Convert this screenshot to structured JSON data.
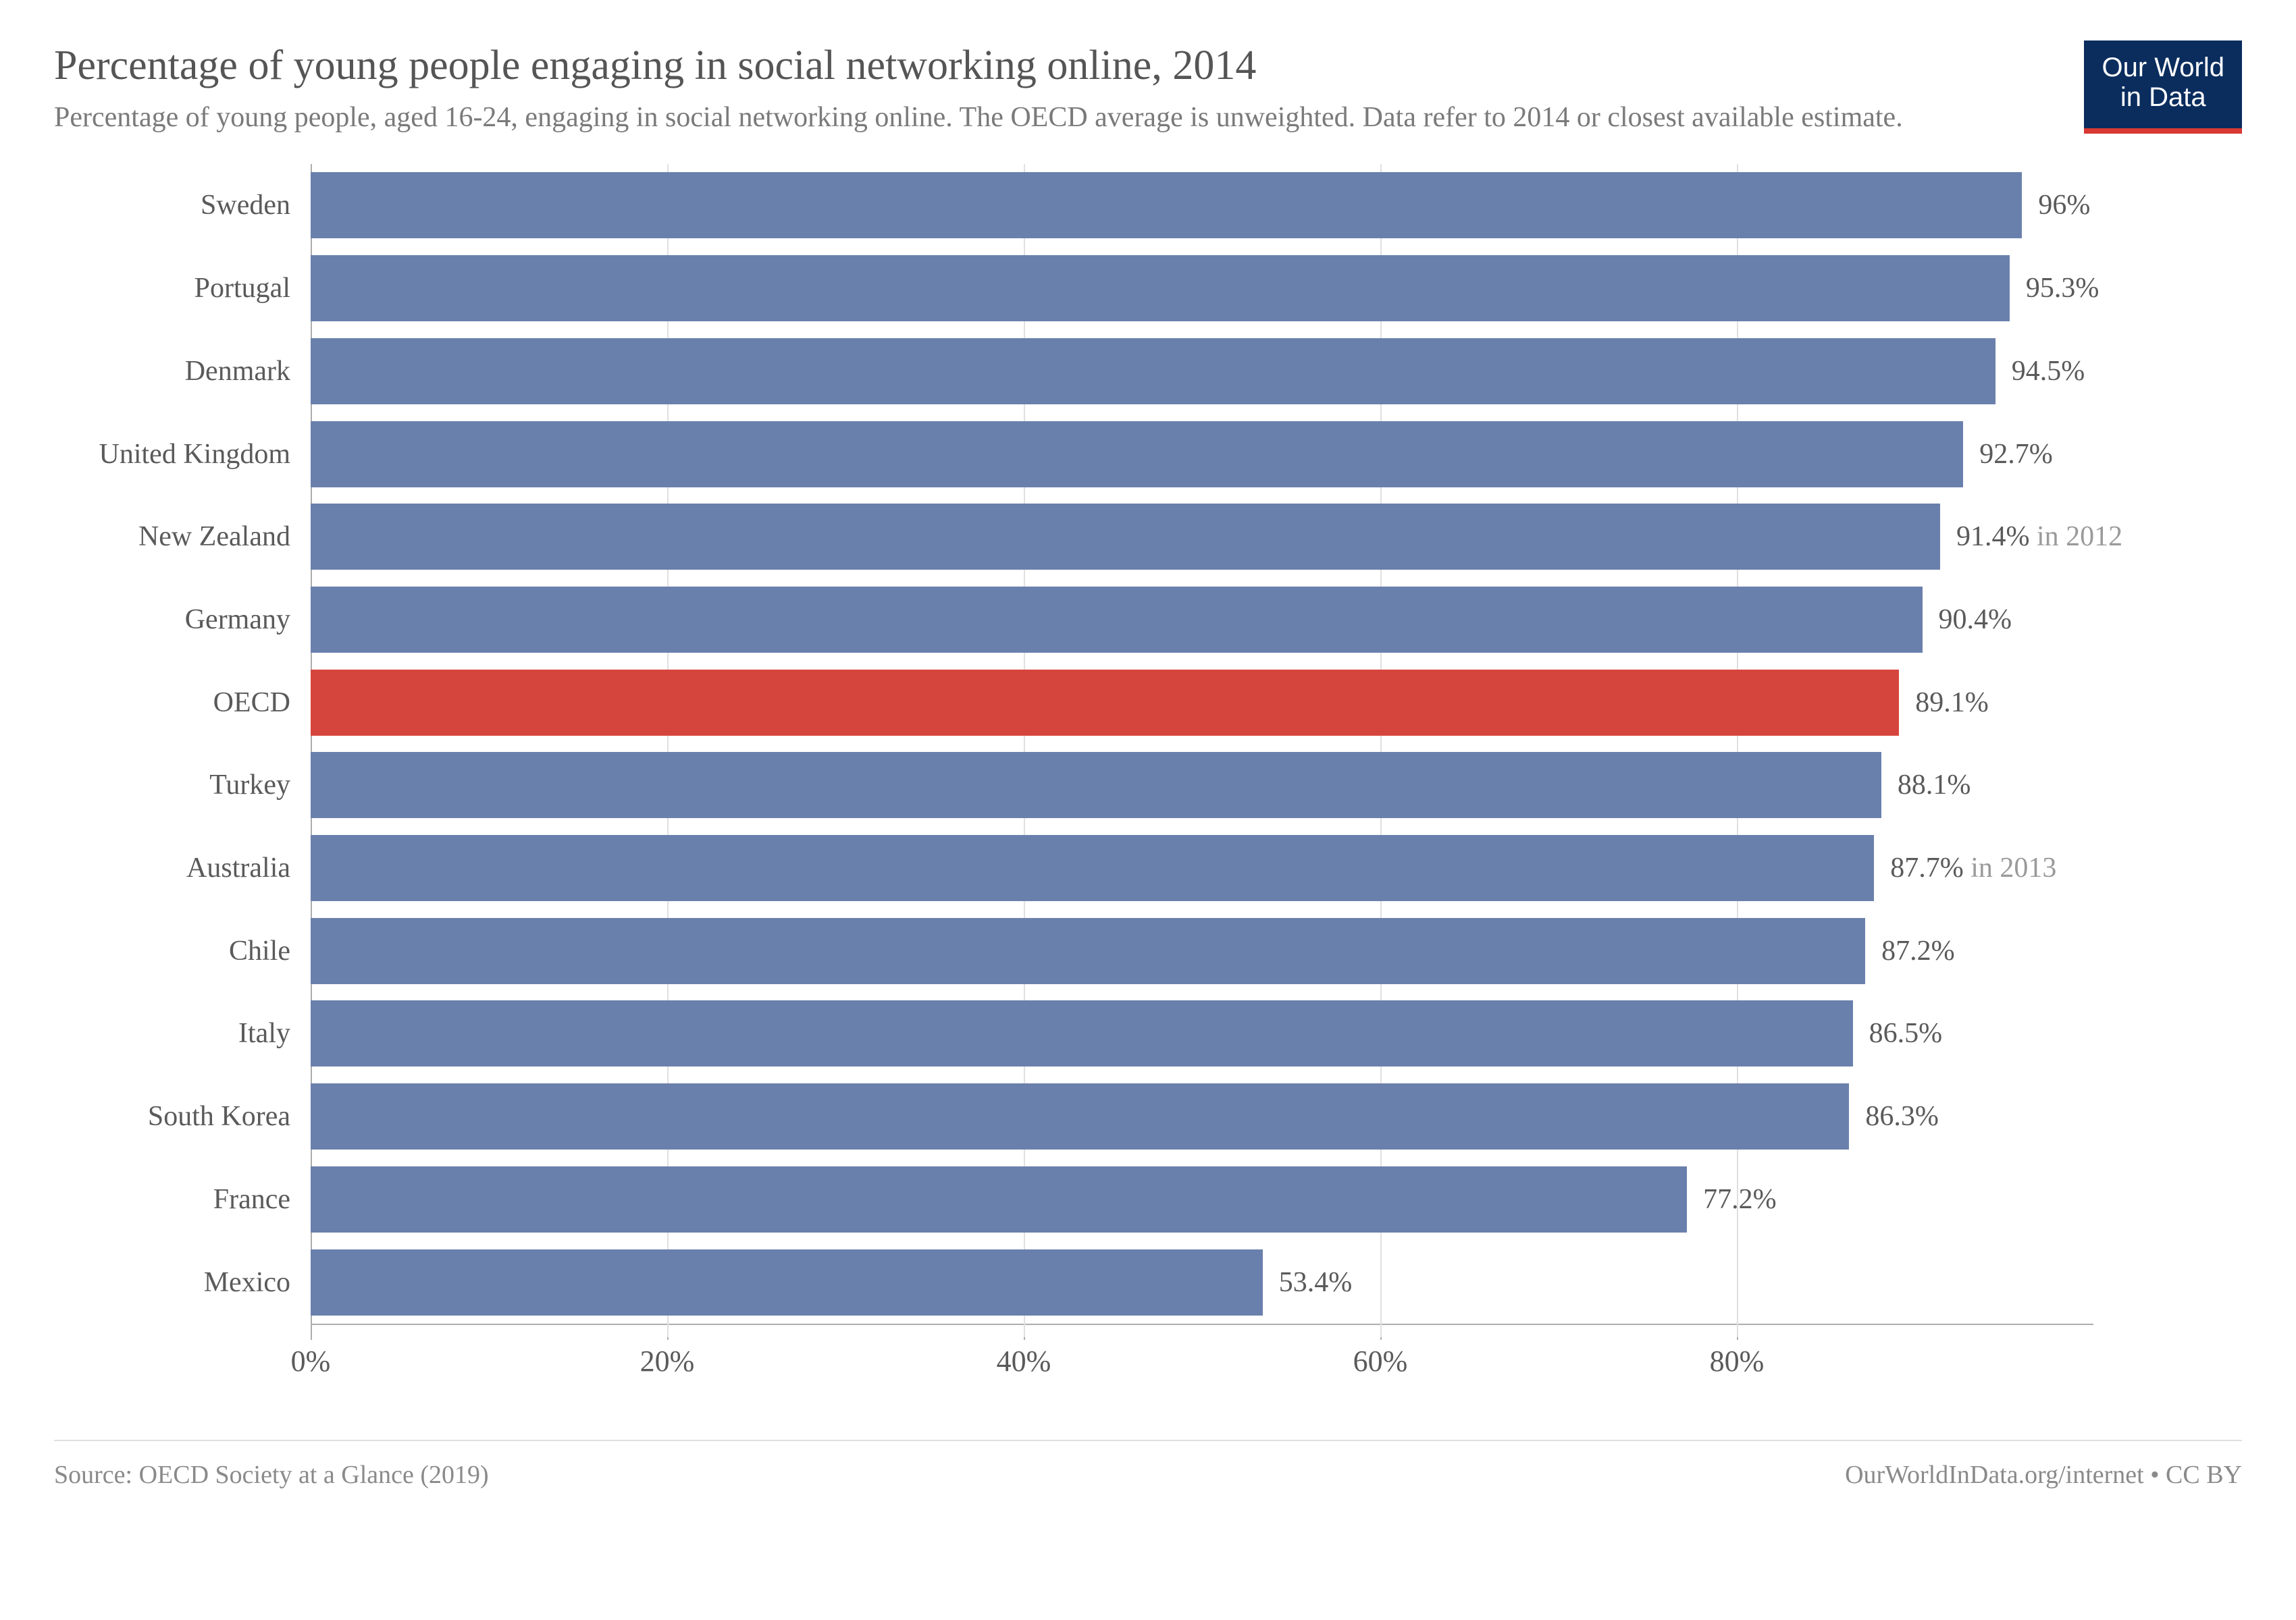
{
  "header": {
    "title": "Percentage of young people engaging in social networking online, 2014",
    "subtitle": "Percentage of young people, aged 16-24, engaging in social networking online. The OECD average is unweighted. Data refer to 2014 or closest available estimate.",
    "logo_line1": "Our World",
    "logo_line2": "in Data",
    "logo_bg": "#0a2d5e",
    "logo_accent": "#d83933"
  },
  "chart": {
    "type": "bar-horizontal",
    "x_min": 0,
    "x_max": 100,
    "x_ticks": [
      0,
      20,
      40,
      60,
      80
    ],
    "x_tick_labels": [
      "0%",
      "20%",
      "40%",
      "60%",
      "80%"
    ],
    "bar_color": "#6a80ac",
    "highlight_color": "#d6453d",
    "background_color": "#ffffff",
    "grid_color": "#e0e0e0",
    "axis_color": "#adadad",
    "label_fontsize": 42,
    "axis_fontsize": 44,
    "rows": [
      {
        "label": "Sweden",
        "value": 96.0,
        "display": "96%",
        "note": "",
        "highlight": false
      },
      {
        "label": "Portugal",
        "value": 95.3,
        "display": "95.3%",
        "note": "",
        "highlight": false
      },
      {
        "label": "Denmark",
        "value": 94.5,
        "display": "94.5%",
        "note": "",
        "highlight": false
      },
      {
        "label": "United Kingdom",
        "value": 92.7,
        "display": "92.7%",
        "note": "",
        "highlight": false
      },
      {
        "label": "New Zealand",
        "value": 91.4,
        "display": "91.4%",
        "note": " in 2012",
        "highlight": false
      },
      {
        "label": "Germany",
        "value": 90.4,
        "display": "90.4%",
        "note": "",
        "highlight": false
      },
      {
        "label": "OECD",
        "value": 89.1,
        "display": "89.1%",
        "note": "",
        "highlight": true
      },
      {
        "label": "Turkey",
        "value": 88.1,
        "display": "88.1%",
        "note": "",
        "highlight": false
      },
      {
        "label": "Australia",
        "value": 87.7,
        "display": "87.7%",
        "note": " in 2013",
        "highlight": false
      },
      {
        "label": "Chile",
        "value": 87.2,
        "display": "87.2%",
        "note": "",
        "highlight": false
      },
      {
        "label": "Italy",
        "value": 86.5,
        "display": "86.5%",
        "note": "",
        "highlight": false
      },
      {
        "label": "South Korea",
        "value": 86.3,
        "display": "86.3%",
        "note": "",
        "highlight": false
      },
      {
        "label": "France",
        "value": 77.2,
        "display": "77.2%",
        "note": "",
        "highlight": false
      },
      {
        "label": "Mexico",
        "value": 53.4,
        "display": "53.4%",
        "note": "",
        "highlight": false
      }
    ]
  },
  "footer": {
    "source": "Source: OECD Society at a Glance (2019)",
    "attribution": "OurWorldInData.org/internet • CC BY"
  }
}
